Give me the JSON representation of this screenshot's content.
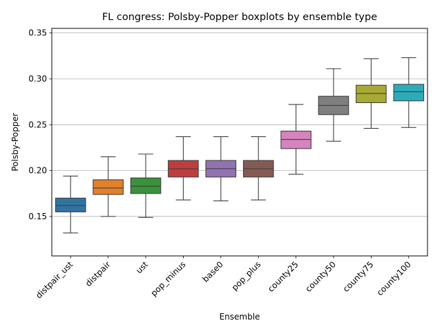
{
  "chart_data": {
    "type": "boxplot",
    "title": "FL congress: Polsby-Popper boxplots by ensemble type",
    "xlabel": "Ensemble",
    "ylabel": "Polsby-Popper",
    "ylim": [
      0.107,
      0.355
    ],
    "yticks": [
      0.15,
      0.2,
      0.25,
      0.3,
      0.35
    ],
    "ytick_labels": [
      "0.15",
      "0.20",
      "0.25",
      "0.30",
      "0.35"
    ],
    "grid": "horizontal",
    "boxes": [
      {
        "category": "distpair_ust",
        "color": "#3274a1",
        "whislo": 0.132,
        "q1": 0.155,
        "med": 0.162,
        "q3": 0.17,
        "whishi": 0.194
      },
      {
        "category": "distpair",
        "color": "#e1812c",
        "whislo": 0.15,
        "q1": 0.174,
        "med": 0.181,
        "q3": 0.19,
        "whishi": 0.215
      },
      {
        "category": "ust",
        "color": "#3a923a",
        "whislo": 0.149,
        "q1": 0.175,
        "med": 0.183,
        "q3": 0.192,
        "whishi": 0.218
      },
      {
        "category": "pop_minus",
        "color": "#c03d3e",
        "whislo": 0.168,
        "q1": 0.193,
        "med": 0.202,
        "q3": 0.211,
        "whishi": 0.237
      },
      {
        "category": "base0",
        "color": "#9372b2",
        "whislo": 0.167,
        "q1": 0.193,
        "med": 0.202,
        "q3": 0.211,
        "whishi": 0.237
      },
      {
        "category": "pop_plus",
        "color": "#845b53",
        "whislo": 0.168,
        "q1": 0.193,
        "med": 0.202,
        "q3": 0.211,
        "whishi": 0.237
      },
      {
        "category": "county25",
        "color": "#d684bd",
        "whislo": 0.196,
        "q1": 0.224,
        "med": 0.234,
        "q3": 0.243,
        "whishi": 0.272
      },
      {
        "category": "county50",
        "color": "#7f7f7f",
        "whislo": 0.232,
        "q1": 0.261,
        "med": 0.271,
        "q3": 0.281,
        "whishi": 0.311
      },
      {
        "category": "county75",
        "color": "#a9aa35",
        "whislo": 0.246,
        "q1": 0.274,
        "med": 0.284,
        "q3": 0.293,
        "whishi": 0.322
      },
      {
        "category": "county100",
        "color": "#2eabb8",
        "whislo": 0.247,
        "q1": 0.276,
        "med": 0.286,
        "q3": 0.294,
        "whishi": 0.323
      }
    ]
  }
}
